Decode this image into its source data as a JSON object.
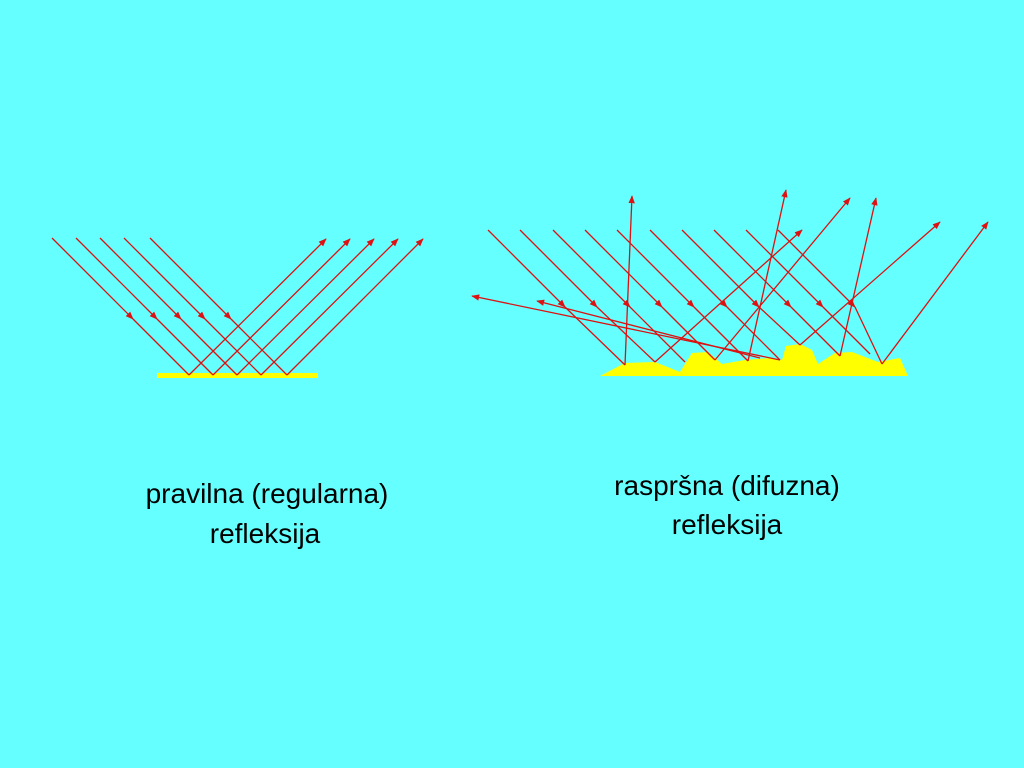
{
  "left_caption": {
    "lines": [
      "pravilna (regularna)",
      "refleksija"
    ]
  },
  "right_caption": {
    "lines": [
      "raspršna (difuzna)",
      "refleksija"
    ]
  }
}
